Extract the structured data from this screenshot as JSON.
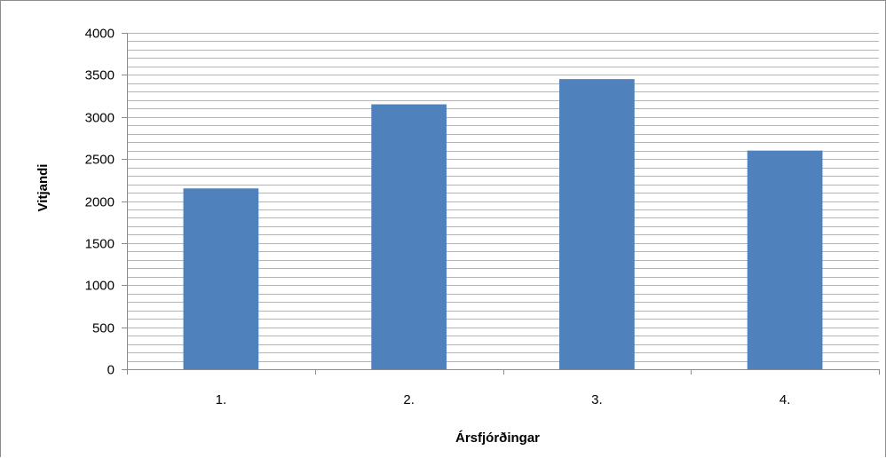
{
  "chart_data": {
    "type": "bar",
    "title": "",
    "xlabel": "Ársfjórðingar",
    "ylabel": "Vitjandi",
    "categories": [
      "1.",
      "2.",
      "3.",
      "4."
    ],
    "values": [
      2150,
      3150,
      3450,
      2600
    ],
    "ylim": [
      0,
      4000
    ],
    "yticks": [
      "0",
      "500",
      "1000",
      "1500",
      "2000",
      "2500",
      "3000",
      "3500",
      "4000"
    ],
    "grid": true,
    "legend": "none",
    "bar_color": "#4f81bd",
    "grid_color": "#b4b4b4"
  }
}
